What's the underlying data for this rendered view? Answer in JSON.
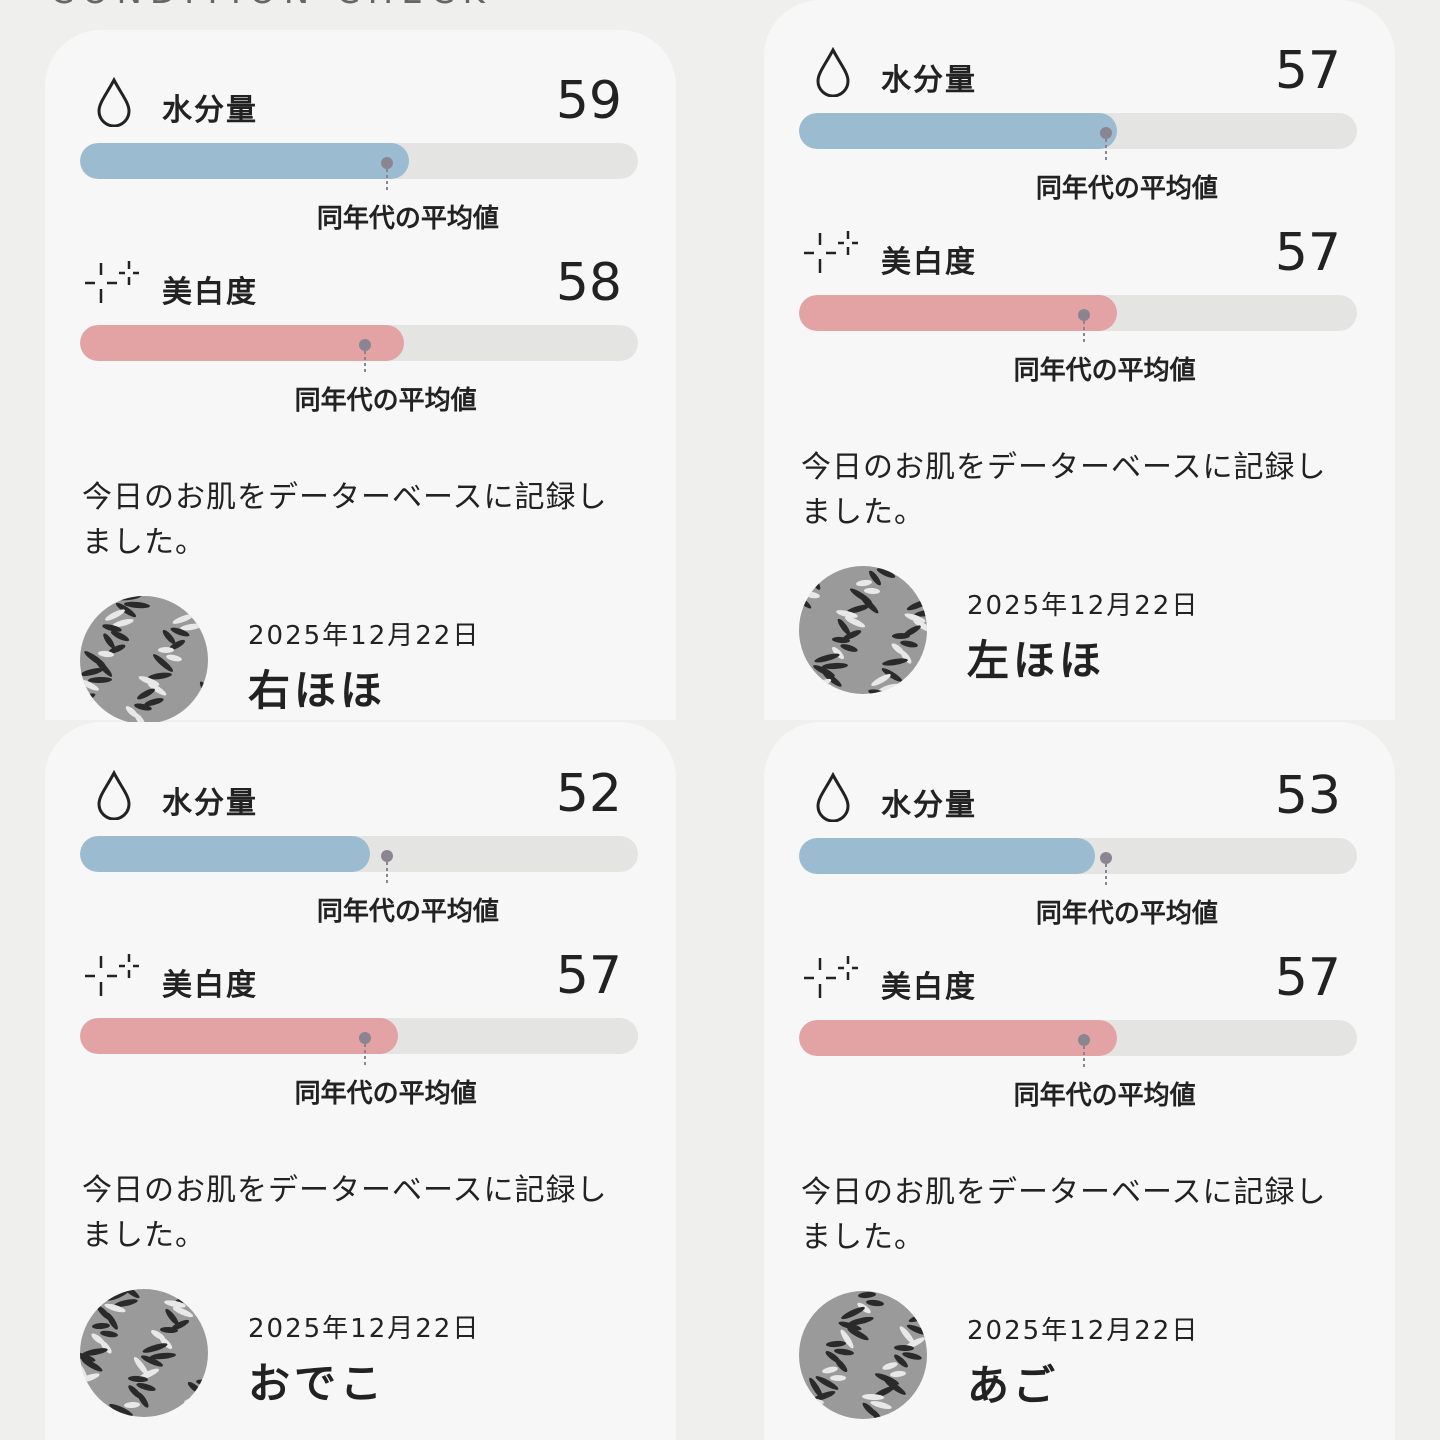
{
  "header": "CONDITION CHECK",
  "scale": [
    0,
    100
  ],
  "cards": [
    {
      "metrics": [
        {
          "label": "水分量",
          "value": 59,
          "average": 55,
          "average_label": "同年代の平均値"
        },
        {
          "label": "美白度",
          "value": 58,
          "average": 51,
          "average_label": "同年代の平均値"
        }
      ],
      "message": "今日のお肌をデーターベースに記録しました。",
      "date": "2025年12月22日",
      "site": "右ほほ"
    },
    {
      "metrics": [
        {
          "label": "水分量",
          "value": 57,
          "average": 55,
          "average_label": "同年代の平均値"
        },
        {
          "label": "美白度",
          "value": 57,
          "average": 51,
          "average_label": "同年代の平均値"
        }
      ],
      "message": "今日のお肌をデーターベースに記録しました。",
      "date": "2025年12月22日",
      "site": "左ほほ"
    },
    {
      "metrics": [
        {
          "label": "水分量",
          "value": 52,
          "average": 55,
          "average_label": "同年代の平均値"
        },
        {
          "label": "美白度",
          "value": 57,
          "average": 51,
          "average_label": "同年代の平均値"
        }
      ],
      "message": "今日のお肌をデーターベースに記録しました。",
      "date": "2025年12月22日",
      "site": "おでこ"
    },
    {
      "metrics": [
        {
          "label": "水分量",
          "value": 53,
          "average": 55,
          "average_label": "同年代の平均値"
        },
        {
          "label": "美白度",
          "value": 57,
          "average": 51,
          "average_label": "同年代の平均値"
        }
      ],
      "message": "今日のお肌をデーターベースに記録しました。",
      "date": "2025年12月22日",
      "site": "あご"
    }
  ]
}
